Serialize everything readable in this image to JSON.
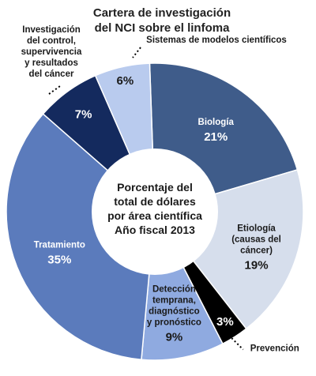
{
  "chart_data": {
    "type": "pie",
    "title_lines": [
      "Cartera de investigación",
      "del NCI sobre el linfoma"
    ],
    "center_lines": [
      "Porcentaje del",
      "total de dólares",
      "por área científica",
      "Año fiscal  2013"
    ],
    "slices": [
      {
        "label_lines": [
          "Biología"
        ],
        "value": 21,
        "pct": "21%",
        "color": "#3f5c8a",
        "text_color": "#ffffff"
      },
      {
        "label_lines": [
          "Etiología",
          "(causas del",
          "cáncer)"
        ],
        "value": 19,
        "pct": "19%",
        "color": "#d6deec",
        "text_color": "#1a1a1a"
      },
      {
        "label_lines": [
          "Prevención"
        ],
        "value": 3,
        "pct": "3%",
        "color": "#000000",
        "text_color": "#ffffff"
      },
      {
        "label_lines": [
          "Detección",
          "temprana,",
          "diagnóstico",
          "y pronóstico"
        ],
        "value": 9,
        "pct": "9%",
        "color": "#8faae0",
        "text_color": "#1a1a1a"
      },
      {
        "label_lines": [
          "Tratamiento"
        ],
        "value": 35,
        "pct": "35%",
        "color": "#5b7bbc",
        "text_color": "#ffffff"
      },
      {
        "label_lines": [
          "Investigación",
          "del control,",
          "supervivencia",
          "y resultados",
          "del cáncer"
        ],
        "value": 7,
        "pct": "7%",
        "color": "#142a5e",
        "text_color": "#ffffff"
      },
      {
        "label_lines": [
          "Sistemas de modelos científicos"
        ],
        "value": 6,
        "pct": "6%",
        "color": "#b9cbee",
        "text_color": "#1a1a1a"
      }
    ]
  }
}
